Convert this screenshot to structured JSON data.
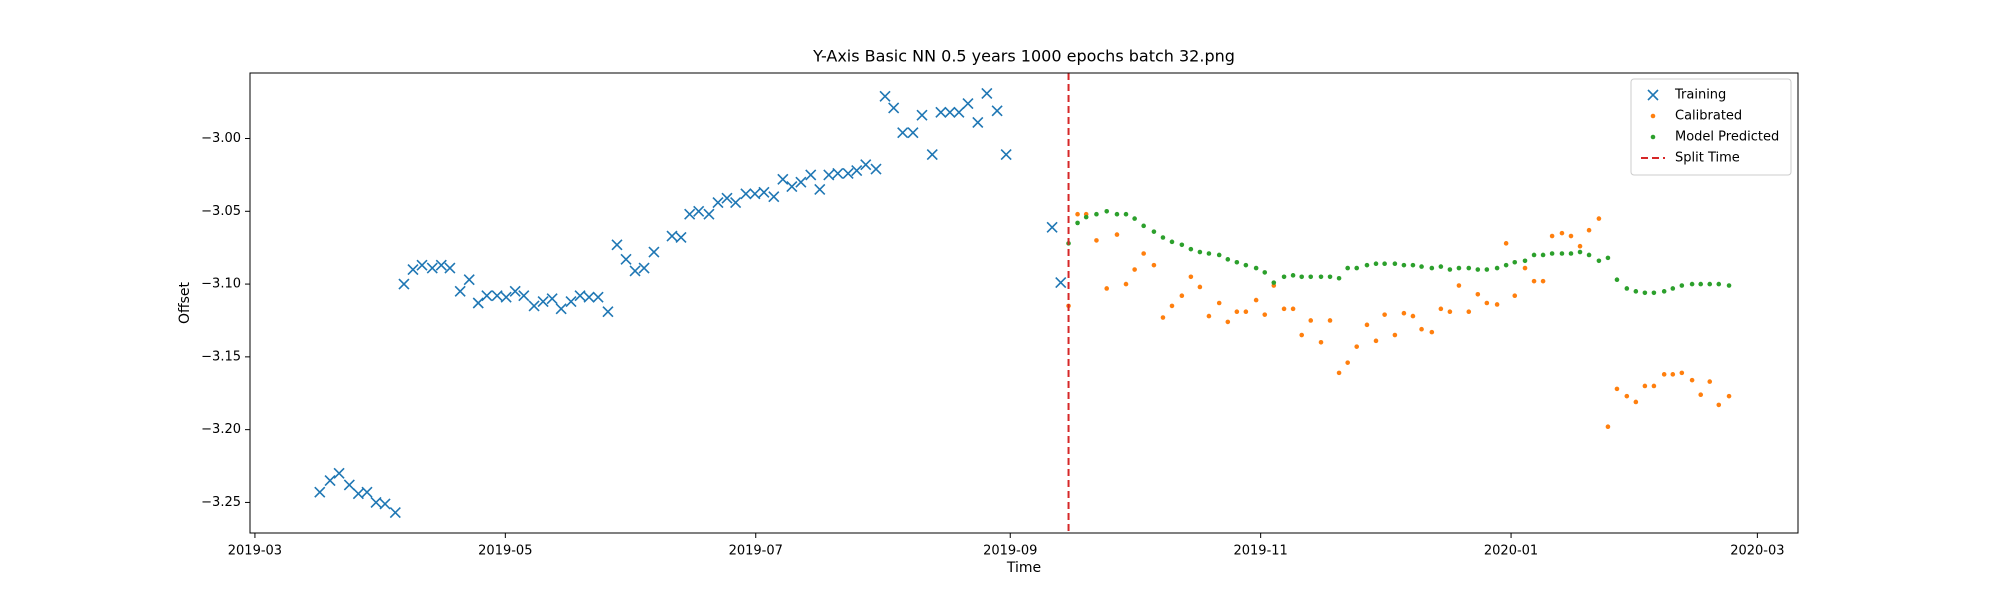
{
  "chart_data": {
    "type": "scatter",
    "title": "Y-Axis Basic NN 0.5 years 1000 epochs batch 32.png",
    "xlabel": "Time",
    "ylabel": "Offset",
    "xlim": [
      57.8,
      434.9
    ],
    "xticks": [
      {
        "value": 59,
        "label": "2019-03"
      },
      {
        "value": 120,
        "label": "2019-05"
      },
      {
        "value": 181,
        "label": "2019-07"
      },
      {
        "value": 243,
        "label": "2019-09"
      },
      {
        "value": 304,
        "label": "2019-11"
      },
      {
        "value": 365,
        "label": "2020-01"
      },
      {
        "value": 425,
        "label": "2020-03"
      }
    ],
    "ylim": [
      -3.271,
      -2.955
    ],
    "yticks": [
      {
        "value": -3.25,
        "label": "−3.25"
      },
      {
        "value": -3.2,
        "label": "−3.20"
      },
      {
        "value": -3.15,
        "label": "−3.15"
      },
      {
        "value": -3.1,
        "label": "−3.10"
      },
      {
        "value": -3.05,
        "label": "−3.05"
      },
      {
        "value": -3.0,
        "label": "−3.00"
      }
    ],
    "legend": "upper right",
    "series": [
      {
        "name": "Training",
        "color": "#1f77b4",
        "marker": "x",
        "x": [
          74.8,
          77.3,
          79.5,
          82.0,
          84.2,
          86.3,
          88.5,
          90.7,
          93.2,
          95.3,
          97.5,
          99.7,
          102.2,
          104.4,
          106.5,
          109.0,
          111.2,
          113.4,
          115.5,
          118.0,
          120.2,
          122.4,
          124.5,
          127.0,
          129.2,
          131.4,
          133.6,
          136.0,
          138.2,
          140.4,
          142.6,
          145.0,
          147.2,
          149.4,
          151.6,
          153.8,
          156.2,
          160.6,
          162.8,
          164.9,
          167.1,
          169.6,
          171.8,
          174.0,
          176.1,
          178.6,
          180.8,
          183.0,
          185.4,
          187.6,
          189.8,
          192.0,
          194.4,
          196.6,
          198.8,
          201.0,
          203.5,
          205.6,
          207.8,
          210.3,
          212.5,
          214.6,
          216.8,
          219.3,
          221.5,
          224.0,
          226.1,
          228.3,
          230.5,
          232.7,
          235.1,
          237.3,
          239.8,
          242.0,
          253.2,
          255.3
        ],
        "values": [
          -3.243,
          -3.235,
          -3.23,
          -3.238,
          -3.244,
          -3.243,
          -3.25,
          -3.251,
          -3.257,
          -3.1,
          -3.09,
          -3.087,
          -3.089,
          -3.087,
          -3.089,
          -3.105,
          -3.097,
          -3.113,
          -3.108,
          -3.108,
          -3.109,
          -3.105,
          -3.108,
          -3.115,
          -3.112,
          -3.11,
          -3.117,
          -3.112,
          -3.108,
          -3.109,
          -3.109,
          -3.119,
          -3.073,
          -3.083,
          -3.091,
          -3.089,
          -3.078,
          -3.067,
          -3.068,
          -3.052,
          -3.05,
          -3.052,
          -3.044,
          -3.041,
          -3.044,
          -3.038,
          -3.038,
          -3.037,
          -3.04,
          -3.028,
          -3.033,
          -3.03,
          -3.025,
          -3.035,
          -3.025,
          -3.024,
          -3.024,
          -3.022,
          -3.018,
          -3.021,
          -2.971,
          -2.979,
          -2.996,
          -2.996,
          -2.984,
          -3.011,
          -2.982,
          -2.982,
          -2.982,
          -2.976,
          -2.989,
          -2.969,
          -2.981,
          -3.011,
          -3.061,
          -3.099
        ]
      },
      {
        "name": "Calibrated",
        "color": "#ff7f0e",
        "marker": "dot",
        "x": [
          257.2,
          259.4,
          261.5,
          264.0,
          266.5,
          269.0,
          271.2,
          273.3,
          275.5,
          278.0,
          280.2,
          282.4,
          284.8,
          287.0,
          289.2,
          291.4,
          293.9,
          296.0,
          298.2,
          300.4,
          302.9,
          305.0,
          307.2,
          309.7,
          311.9,
          314.0,
          316.2,
          318.7,
          320.9,
          323.1,
          325.2,
          327.4,
          329.9,
          332.1,
          334.2,
          336.7,
          338.9,
          341.1,
          343.2,
          345.7,
          347.9,
          350.1,
          352.3,
          354.7,
          356.9,
          359.1,
          361.6,
          363.8,
          365.9,
          368.4,
          370.6,
          372.8,
          375.0,
          377.4,
          379.6,
          381.8,
          384.0,
          386.4,
          388.6,
          390.8,
          393.2,
          395.4,
          397.6,
          399.8,
          402.3,
          404.4,
          406.6,
          409.1,
          411.2,
          413.4,
          415.6,
          418.1
        ],
        "values": [
          -3.115,
          -3.052,
          -3.052,
          -3.07,
          -3.103,
          -3.066,
          -3.1,
          -3.09,
          -3.079,
          -3.087,
          -3.123,
          -3.115,
          -3.108,
          -3.095,
          -3.102,
          -3.122,
          -3.113,
          -3.126,
          -3.119,
          -3.119,
          -3.111,
          -3.121,
          -3.101,
          -3.117,
          -3.117,
          -3.135,
          -3.125,
          -3.14,
          -3.125,
          -3.161,
          -3.154,
          -3.143,
          -3.128,
          -3.139,
          -3.121,
          -3.135,
          -3.12,
          -3.122,
          -3.131,
          -3.133,
          -3.117,
          -3.119,
          -3.101,
          -3.119,
          -3.107,
          -3.113,
          -3.114,
          -3.072,
          -3.108,
          -3.089,
          -3.098,
          -3.098,
          -3.067,
          -3.065,
          -3.067,
          -3.074,
          -3.063,
          -3.055,
          -3.198,
          -3.172,
          -3.177,
          -3.181,
          -3.17,
          -3.17,
          -3.162,
          -3.162,
          -3.161,
          -3.166,
          -3.176,
          -3.167,
          -3.183,
          -3.177
        ]
      },
      {
        "name": "Model Predicted",
        "color": "#2ca02c",
        "marker": "dot",
        "x": [
          257.2,
          259.4,
          261.5,
          264.0,
          266.5,
          269.0,
          271.2,
          273.3,
          275.5,
          278.0,
          280.2,
          282.4,
          284.8,
          287.0,
          289.2,
          291.4,
          293.9,
          296.0,
          298.2,
          300.4,
          302.9,
          305.0,
          307.2,
          309.7,
          311.9,
          314.0,
          316.2,
          318.7,
          320.9,
          323.1,
          325.2,
          327.4,
          329.9,
          332.1,
          334.2,
          336.7,
          338.9,
          341.1,
          343.2,
          345.7,
          347.9,
          350.1,
          352.3,
          354.7,
          356.9,
          359.1,
          361.6,
          363.8,
          365.9,
          368.4,
          370.6,
          372.8,
          375.0,
          377.4,
          379.6,
          381.8,
          384.0,
          386.4,
          388.6,
          390.8,
          393.2,
          395.4,
          397.6,
          399.8,
          402.3,
          404.4,
          406.6,
          409.1,
          411.2,
          413.4,
          415.6,
          418.1
        ],
        "values": [
          -3.072,
          -3.058,
          -3.054,
          -3.052,
          -3.05,
          -3.052,
          -3.052,
          -3.055,
          -3.06,
          -3.064,
          -3.068,
          -3.071,
          -3.073,
          -3.076,
          -3.078,
          -3.079,
          -3.08,
          -3.083,
          -3.085,
          -3.087,
          -3.089,
          -3.092,
          -3.099,
          -3.095,
          -3.094,
          -3.095,
          -3.095,
          -3.095,
          -3.095,
          -3.096,
          -3.089,
          -3.089,
          -3.087,
          -3.086,
          -3.086,
          -3.086,
          -3.087,
          -3.087,
          -3.088,
          -3.089,
          -3.088,
          -3.09,
          -3.089,
          -3.089,
          -3.09,
          -3.09,
          -3.089,
          -3.087,
          -3.085,
          -3.084,
          -3.08,
          -3.08,
          -3.079,
          -3.079,
          -3.079,
          -3.078,
          -3.08,
          -3.084,
          -3.082,
          -3.097,
          -3.103,
          -3.105,
          -3.106,
          -3.106,
          -3.105,
          -3.103,
          -3.101,
          -3.1,
          -3.1,
          -3.1,
          -3.1,
          -3.101
        ]
      }
    ],
    "vlines": [
      {
        "name": "Split Time",
        "color": "#d62728",
        "x": 257.2
      }
    ]
  }
}
